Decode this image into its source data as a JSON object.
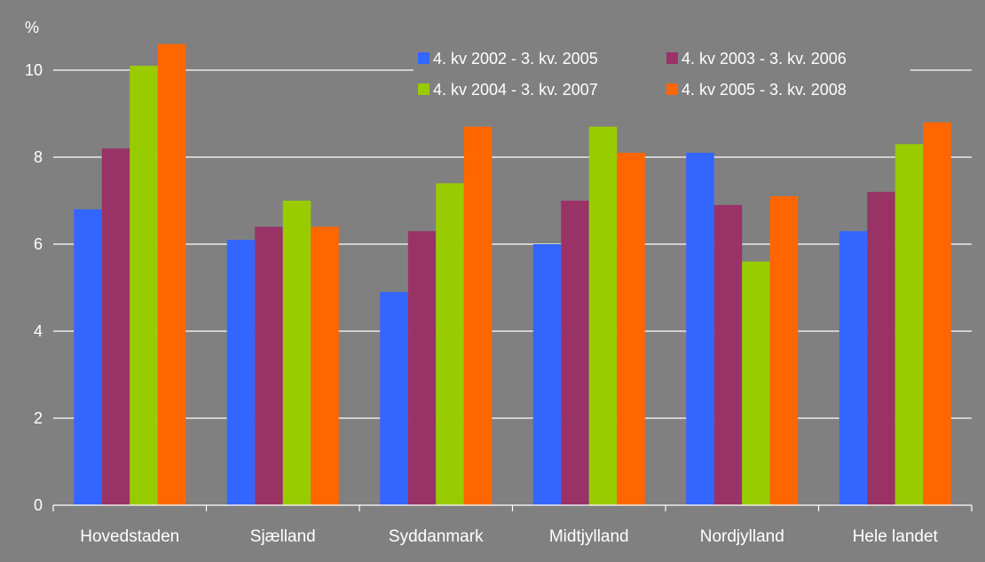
{
  "chart_data": {
    "type": "bar",
    "ylabel_unit": "%",
    "ylim": [
      0,
      11
    ],
    "yticks": [
      0,
      2,
      4,
      6,
      8,
      10
    ],
    "grid": true,
    "legend_position": "top-right",
    "categories": [
      "Hovedstaden",
      "Sjælland",
      "Syddanmark",
      "Midtjylland",
      "Nordjylland",
      "Hele landet"
    ],
    "series": [
      {
        "name": "4. kv 2002 - 3. kv. 2005",
        "color": "#3366FF",
        "values": [
          6.8,
          6.1,
          4.9,
          6.0,
          8.1,
          6.3
        ]
      },
      {
        "name": "4. kv 2003 - 3. kv. 2006",
        "color": "#993366",
        "values": [
          8.2,
          6.4,
          6.3,
          7.0,
          6.9,
          7.2
        ]
      },
      {
        "name": "4. kv 2004 - 3. kv. 2007",
        "color": "#99CC00",
        "values": [
          10.1,
          7.0,
          7.4,
          8.7,
          5.6,
          8.3
        ]
      },
      {
        "name": "4. kv 2005 - 3. kv. 2008",
        "color": "#FF6600",
        "values": [
          10.6,
          6.4,
          8.7,
          8.1,
          7.1,
          8.8
        ]
      }
    ]
  }
}
